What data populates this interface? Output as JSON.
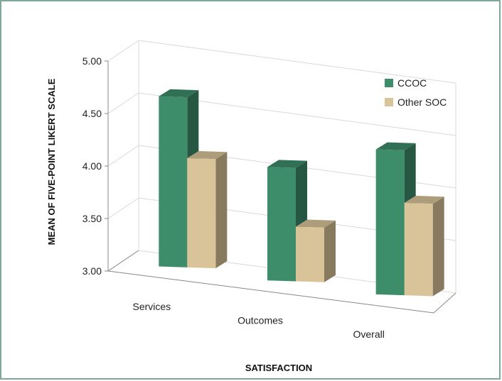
{
  "chart_data": {
    "type": "bar",
    "categories": [
      "Services",
      "Outcomes",
      "Overall"
    ],
    "series": [
      {
        "name": "CCOC",
        "values": [
          4.62,
          4.08,
          4.38
        ]
      },
      {
        "name": "Other SOC",
        "values": [
          4.04,
          3.52,
          3.88
        ]
      }
    ],
    "xlabel": "SATISFACTION",
    "ylabel": "MEAN OF FIVE-POINT LIKERT SCALE",
    "ylim": [
      3.0,
      5.0
    ],
    "yticks": [
      "3.00",
      "3.50",
      "4.00",
      "4.50",
      "5.00"
    ],
    "grid": true,
    "legend_position": "top-right",
    "style": "3d-clustered-column"
  },
  "colors": {
    "CCOC": "#3d8c6a",
    "Other SOC": "#d9c49a",
    "frame": "#7fa89b",
    "grid": "#d9d9d9"
  }
}
